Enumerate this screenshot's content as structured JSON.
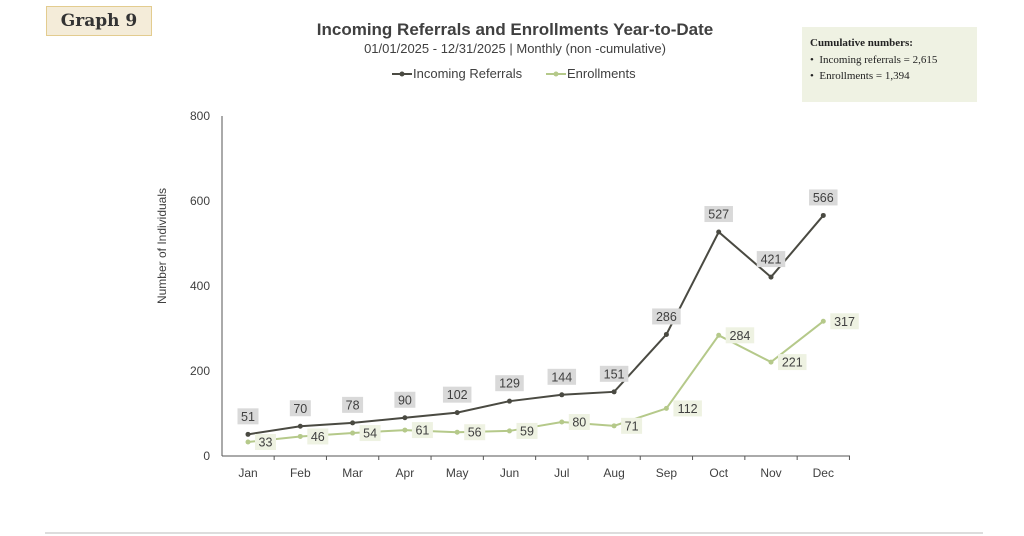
{
  "badge": "Graph 9",
  "note": {
    "heading": "Cumulative numbers:",
    "items": [
      "Incoming referrals = 2,615",
      "Enrollments = 1,394"
    ]
  },
  "chart_data": {
    "type": "line",
    "title": "Incoming Referrals and Enrollments Year-to-Date",
    "subtitle": "01/01/2025  - 12/31/2025 | Monthly (non -cumulative)",
    "xlabel": "",
    "ylabel": "Number of Individuals",
    "ylim": [
      0,
      800
    ],
    "yticks": [
      0,
      200,
      400,
      600,
      800
    ],
    "categories": [
      "Jan",
      "Feb",
      "Mar",
      "Apr",
      "May",
      "Jun",
      "Jul",
      "Aug",
      "Sep",
      "Oct",
      "Nov",
      "Dec"
    ],
    "legend_position": "top",
    "series": [
      {
        "name": "Incoming Referrals",
        "color": "#4a4a42",
        "label_bg": "#d9d9d9",
        "values": [
          51,
          70,
          78,
          90,
          102,
          129,
          144,
          151,
          286,
          527,
          421,
          566
        ]
      },
      {
        "name": "Enrollments",
        "color": "#b5c98a",
        "label_bg": "#eef2e2",
        "values": [
          33,
          46,
          54,
          61,
          56,
          59,
          80,
          71,
          112,
          284,
          221,
          317
        ]
      }
    ]
  }
}
